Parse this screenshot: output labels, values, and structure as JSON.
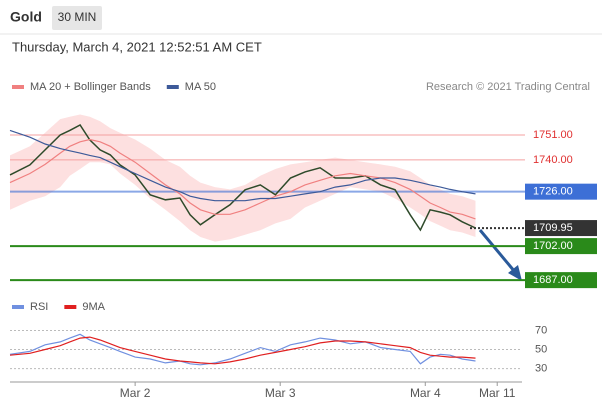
{
  "header": {
    "title": "Gold",
    "interval": "30 MIN",
    "timestamp": "Thursday, March 4, 2021 12:52:51 AM CET",
    "credit": "Research © 2021 Trading Central"
  },
  "chart_data": [
    {
      "type": "line",
      "x": [
        3.3,
        6.6,
        9.1,
        11.6,
        13.2,
        14.9,
        16.5,
        18.2,
        19.9,
        21.5,
        24,
        26.5,
        29,
        31.4,
        33.1,
        34.8,
        37.2,
        39.7,
        42.2,
        44.7,
        47.2,
        49.7,
        52.1,
        54.6,
        57.1,
        59.6,
        62.1,
        64.6,
        67,
        69.5,
        71.2,
        72.8,
        74.5,
        76.1,
        78.1,
        80.3
      ],
      "xlim": [
        3.3,
        88
      ],
      "ylim": [
        1680,
        1762
      ],
      "series": [
        {
          "color": "#2e4a2a",
          "values": [
            1733.4,
            1737.8,
            1744.4,
            1751,
            1753,
            1755.4,
            1748.8,
            1744.4,
            1742.2,
            1737.8,
            1733.4,
            1724.6,
            1722.4,
            1723.2,
            1715.8,
            1711.4,
            1715.8,
            1720.2,
            1726.8,
            1729,
            1724.6,
            1732,
            1734.7,
            1736.5,
            1732,
            1732,
            1733,
            1729,
            1726.8,
            1715.8,
            1709.1,
            1718,
            1717,
            1715.8,
            1712.7,
            1710
          ]
        },
        {
          "name": "MA 20 + Bollinger Bands",
          "color": "#f08080",
          "band_color": "#fde0e0",
          "values": [
            1730,
            1734,
            1738,
            1743,
            1746,
            1748,
            1749,
            1748,
            1746,
            1743,
            1739,
            1734,
            1729,
            1725,
            1721,
            1718,
            1716,
            1716,
            1718,
            1721,
            1724,
            1726,
            1729,
            1731,
            1733,
            1734,
            1733,
            1732,
            1730,
            1727,
            1724,
            1721,
            1719,
            1717,
            1716,
            1714
          ],
          "upper": [
            1742,
            1746,
            1752,
            1758,
            1759,
            1760,
            1759,
            1757,
            1754,
            1752,
            1749,
            1745,
            1740,
            1737,
            1733,
            1730,
            1728,
            1727,
            1729,
            1733,
            1736,
            1738,
            1739,
            1740,
            1741,
            1740,
            1739,
            1738,
            1737,
            1735,
            1732,
            1729,
            1727,
            1725,
            1724,
            1722
          ],
          "lower": [
            1718,
            1722,
            1724,
            1728,
            1733,
            1736,
            1739,
            1739,
            1738,
            1734,
            1729,
            1723,
            1718,
            1713,
            1709,
            1706,
            1704,
            1705,
            1707,
            1709,
            1712,
            1714,
            1719,
            1722,
            1725,
            1728,
            1727,
            1726,
            1723,
            1719,
            1716,
            1713,
            1711,
            1709,
            1708,
            1706
          ]
        },
        {
          "name": "MA 50",
          "color": "#3d5a99",
          "values": [
            1753,
            1750,
            1747,
            1745,
            1744,
            1743,
            1742,
            1741,
            1739,
            1737,
            1734,
            1731,
            1728,
            1726,
            1724,
            1723,
            1722,
            1722,
            1722,
            1723,
            1723,
            1724,
            1725,
            1726,
            1728,
            1729,
            1731,
            1732,
            1732,
            1731,
            1730,
            1729,
            1728,
            1727,
            1726,
            1725
          ]
        }
      ],
      "levels": [
        {
          "value": 1751,
          "label": "1751.00",
          "color": "#e03030",
          "style": "text"
        },
        {
          "value": 1740,
          "label": "1740.00",
          "color": "#e03030",
          "style": "text"
        },
        {
          "value": 1726,
          "label": "1726.00",
          "color": "#3d6fd6",
          "style": "box"
        },
        {
          "value": 1709.95,
          "label": "1709.95",
          "color": "#333333",
          "style": "box"
        },
        {
          "value": 1702,
          "label": "1702.00",
          "color": "#2a8a1a",
          "style": "box"
        },
        {
          "value": 1687,
          "label": "1687.00",
          "color": "#2a8a1a",
          "style": "box"
        }
      ]
    },
    {
      "type": "line",
      "x": [
        3.3,
        6.6,
        9.1,
        11.6,
        13.2,
        14.9,
        16.5,
        18.2,
        19.9,
        21.5,
        24,
        26.5,
        29,
        31.4,
        33.1,
        34.8,
        37.2,
        39.7,
        42.2,
        44.7,
        47.2,
        49.7,
        52.1,
        54.6,
        57.1,
        59.6,
        62.1,
        64.6,
        67,
        69.5,
        71.2,
        72.8,
        74.5,
        76.1,
        78.1,
        80.3
      ],
      "xlim": [
        3.3,
        88
      ],
      "xticks": [
        {
          "value": 24,
          "label": "Mar 2"
        },
        {
          "value": 48,
          "label": "Mar 3"
        },
        {
          "value": 72,
          "label": "Mar 4"
        },
        {
          "value": 83.9,
          "label": "Mar 11"
        }
      ],
      "ylim": [
        18,
        81
      ],
      "yticks": [
        30,
        50,
        70
      ],
      "series": [
        {
          "name": "RSI",
          "color": "#7090e0",
          "values": [
            45,
            48,
            55,
            58,
            62,
            66,
            60,
            56,
            52,
            48,
            42,
            40,
            36,
            38,
            35,
            34,
            36,
            40,
            46,
            52,
            48,
            55,
            58,
            62,
            60,
            56,
            58,
            52,
            50,
            48,
            35,
            42,
            45,
            44,
            40,
            38
          ]
        },
        {
          "name": "9MA",
          "color": "#e02020",
          "values": [
            44,
            46,
            50,
            54,
            58,
            62,
            63,
            60,
            56,
            52,
            48,
            44,
            40,
            38,
            37,
            36,
            35,
            37,
            40,
            44,
            47,
            50,
            53,
            57,
            59,
            59,
            58,
            56,
            54,
            52,
            47,
            44,
            43,
            42,
            42,
            41
          ]
        }
      ]
    }
  ]
}
